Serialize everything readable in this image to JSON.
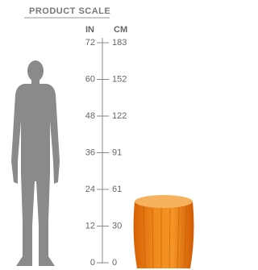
{
  "header": {
    "title": "PRODUCT SCALE"
  },
  "scale": {
    "units": [
      "IN",
      "CM"
    ],
    "ticks": [
      {
        "in": "72",
        "cm": "183"
      },
      {
        "in": "60",
        "cm": "152"
      },
      {
        "in": "48",
        "cm": "122"
      },
      {
        "in": "36",
        "cm": "91"
      },
      {
        "in": "24",
        "cm": "61"
      },
      {
        "in": "12",
        "cm": "30"
      },
      {
        "in": "0",
        "cm": "0"
      }
    ]
  }
}
